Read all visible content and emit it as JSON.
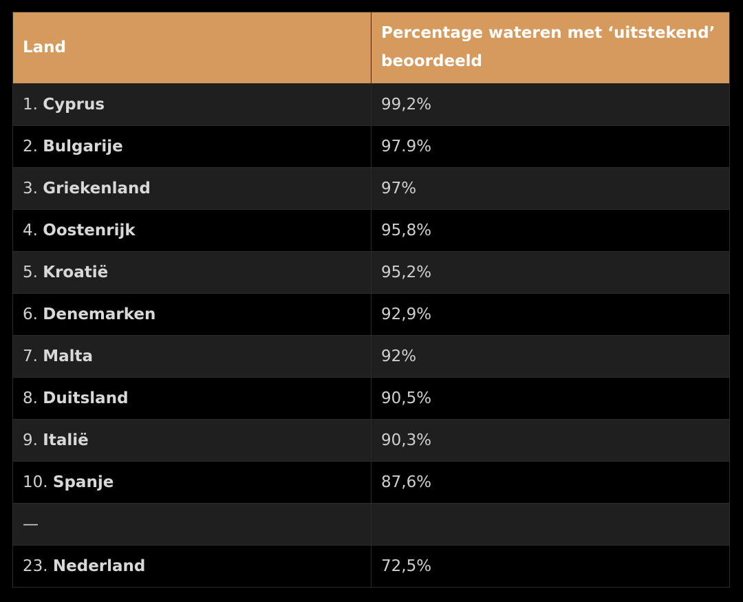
{
  "header": {
    "land": "Land",
    "percentage": "Percentage wateren met ‘uitstekend’ beoordeeld"
  },
  "rows": [
    {
      "rank": "1.",
      "country": "Cyprus",
      "value": "99,2%"
    },
    {
      "rank": "2.",
      "country": "Bulgarije",
      "value": "97.9%"
    },
    {
      "rank": "3.",
      "country": "Griekenland",
      "value": "97%"
    },
    {
      "rank": "4.",
      "country": "Oostenrijk",
      "value": "95,8%"
    },
    {
      "rank": "5.",
      "country": "Kroatië",
      "value": "95,2%"
    },
    {
      "rank": "6.",
      "country": "Denemarken",
      "value": "92,9%"
    },
    {
      "rank": "7.",
      "country": "Malta",
      "value": "92%"
    },
    {
      "rank": "8.",
      "country": "Duitsland",
      "value": "90,5%"
    },
    {
      "rank": "9.",
      "country": "Italië",
      "value": "90,3%"
    },
    {
      "rank": "10.",
      "country": "Spanje",
      "value": "87,6%"
    },
    {
      "rank": "—",
      "country": "",
      "value": ""
    },
    {
      "rank": "23.",
      "country": "Nederland",
      "value": "72,5%"
    }
  ],
  "colors": {
    "header_bg": "#d69a5d",
    "row_odd": "#1f1f1f",
    "row_even": "#000000"
  }
}
